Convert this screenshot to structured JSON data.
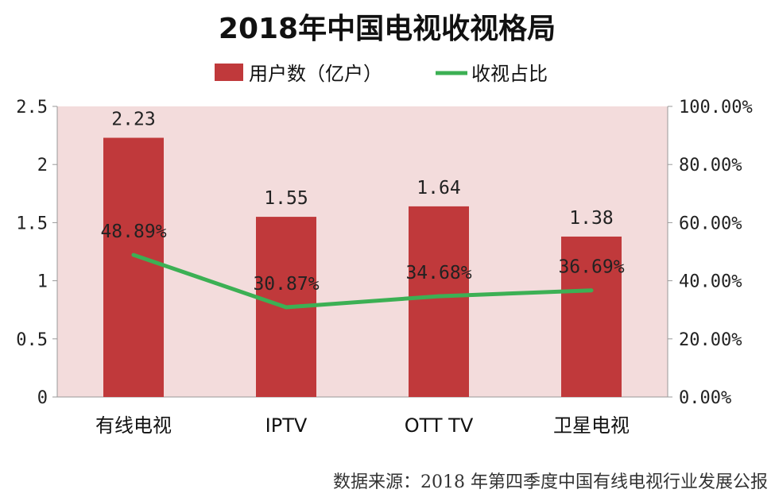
{
  "chart_data": {
    "type": "bar",
    "title": "2018年中国电视收视格局",
    "categories": [
      "有线电视",
      "IPTV",
      "OTT TV",
      "卫星电视"
    ],
    "series": [
      {
        "name": "用户数（亿户）",
        "type": "bar",
        "axis": "left",
        "values": [
          2.23,
          1.55,
          1.64,
          1.38
        ],
        "labels": [
          "2.23",
          "1.55",
          "1.64",
          "1.38"
        ]
      },
      {
        "name": "收视占比",
        "type": "line",
        "axis": "right",
        "values": [
          48.89,
          30.87,
          34.68,
          36.69
        ],
        "labels": [
          "48.89%",
          "30.87%",
          "34.68%",
          "36.69%"
        ]
      }
    ],
    "ylim": [
      0,
      2.5
    ],
    "yticks": [
      "0",
      "0.5",
      "1",
      "1.5",
      "2",
      "2.5"
    ],
    "y2lim": [
      0,
      100
    ],
    "y2ticks": [
      "0.00%",
      "20.00%",
      "40.00%",
      "60.00%",
      "80.00%",
      "100.00%"
    ],
    "legend": "top-center",
    "grid": false,
    "colors": {
      "bar": "#c0393b",
      "line": "#3cb054",
      "plot_bg": "#f3dcdc"
    },
    "source": "数据来源：2018 年第四季度中国有线电视行业发展公报"
  }
}
